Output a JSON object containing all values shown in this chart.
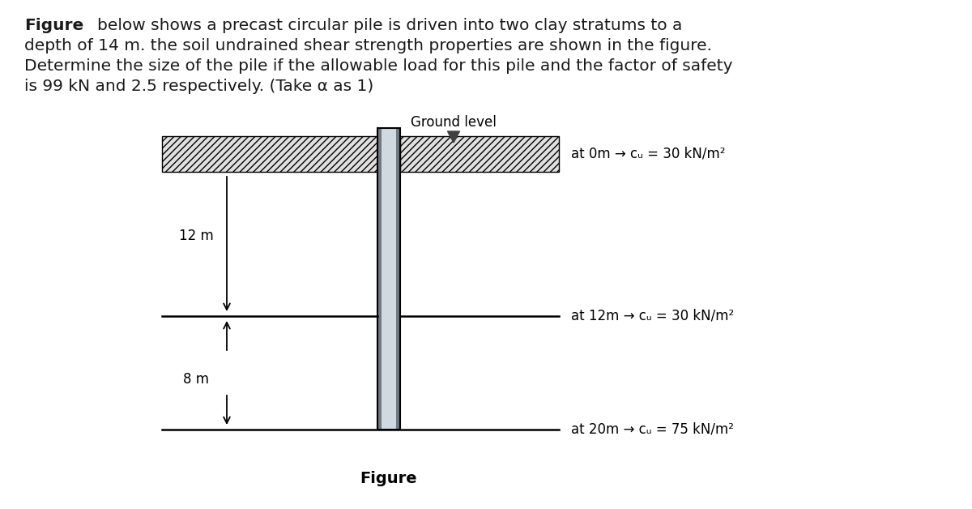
{
  "title_bold": "Figure",
  "title_rest_line1": "       below shows a precast circular pile is driven into two clay stratums to a",
  "title_line2": "depth of 14 m. the soil undrained shear strength properties are shown in the figure.",
  "title_line3": "Determine the size of the pile if the allowable load for this pile and the factor of safety",
  "title_line4": "is 99 kN and 2.5 respectively. (Take α as 1)",
  "ground_level_label": "Ground level",
  "label_12m": "12 m",
  "label_8m": "8 m",
  "label_figure": "Figure",
  "annotation_0m": "at 0m → cᵤ = 30 kN/m²",
  "annotation_12m": "at 12m → cᵤ = 30 kN/m²",
  "annotation_20m": "at 20m → cᵤ = 75 kN/m²",
  "bg_color": "#ffffff",
  "pile_color_main": "#b0b8c0",
  "pile_color_dark": "#707880",
  "pile_color_mid": "#d0d8e0",
  "hatch_facecolor": "#e0e0e0",
  "line_color": "#000000",
  "text_color": "#1a1a1a",
  "title_fontsize": 14.5,
  "diagram_fontsize": 12,
  "ann_fontsize": 12
}
